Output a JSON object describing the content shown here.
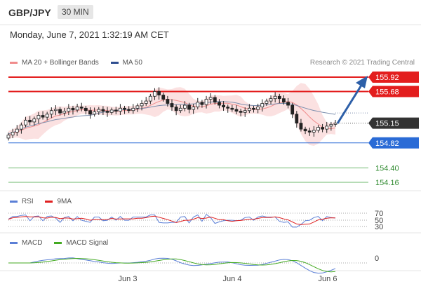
{
  "header": {
    "symbol": "GBP/JPY",
    "timeframe": "30 MIN"
  },
  "timestamp": "Monday, June 7, 2021 1:32:19 AM CET",
  "credit": "Research © 2021 Trading Central",
  "legends": {
    "main": [
      {
        "label": "MA 20 + Bollinger Bands",
        "color": "#f08c8c"
      },
      {
        "label": "MA 50",
        "color": "#2e4d8f"
      }
    ],
    "rsi": [
      {
        "label": "RSI",
        "color": "#5b7fd6"
      },
      {
        "label": "9MA",
        "color": "#e02020"
      }
    ],
    "macd": [
      {
        "label": "MACD",
        "color": "#5b7fd6"
      },
      {
        "label": "MACD Signal",
        "color": "#44aa22"
      }
    ]
  },
  "chart_data": {
    "type": "line",
    "y_range": [
      153.9,
      156.05
    ],
    "price_levels": [
      {
        "label": "155.92",
        "value": 155.92,
        "role": "resistance",
        "color": "#e31e1e",
        "tag_color": "#e31e1e",
        "text_color": "#ffffff"
      },
      {
        "label": "155.68",
        "value": 155.68,
        "role": "resistance",
        "color": "#e31e1e",
        "tag_color": "#e31e1e",
        "text_color": "#ffffff"
      },
      {
        "label": "155.15",
        "value": 155.15,
        "role": "last",
        "color": "#555555",
        "tag_color": "#333333",
        "text_color": "#ffffff"
      },
      {
        "label": "154.82",
        "value": 154.82,
        "role": "pivot",
        "color": "#2a6bd6",
        "tag_color": "#2a6bd6",
        "text_color": "#ffffff"
      },
      {
        "label": "154.40",
        "value": 154.4,
        "role": "support",
        "color": "#2f9a2f",
        "tag_color": null,
        "text_color": "#2f8a2f"
      },
      {
        "label": "154.16",
        "value": 154.16,
        "role": "support",
        "color": "#2f9a2f",
        "tag_color": null,
        "text_color": "#2f8a2f"
      }
    ],
    "x_labels": [
      "Jun 3",
      "Jun 4",
      "Jun 6"
    ],
    "rsi_levels": [
      "70",
      "50",
      "30"
    ],
    "macd_levels": [
      "0"
    ],
    "close_series": [
      154.95,
      155.0,
      155.05,
      155.12,
      155.2,
      155.17,
      155.22,
      155.28,
      155.25,
      155.3,
      155.36,
      155.38,
      155.32,
      155.35,
      155.4,
      155.37,
      155.42,
      155.4,
      155.36,
      155.3,
      155.34,
      155.38,
      155.35,
      155.33,
      155.37,
      155.35,
      155.4,
      155.38,
      155.36,
      155.4,
      155.44,
      155.48,
      155.52,
      155.6,
      155.68,
      155.62,
      155.55,
      155.48,
      155.42,
      155.36,
      155.4,
      155.45,
      155.38,
      155.42,
      155.5,
      155.46,
      155.55,
      155.58,
      155.5,
      155.45,
      155.42,
      155.4,
      155.38,
      155.35,
      155.33,
      155.36,
      155.4,
      155.38,
      155.42,
      155.48,
      155.52,
      155.56,
      155.6,
      155.56,
      155.5,
      155.45,
      155.3,
      155.15,
      155.05,
      155.02,
      155.0,
      155.03,
      155.08,
      155.05,
      155.1,
      155.13,
      155.15
    ]
  }
}
